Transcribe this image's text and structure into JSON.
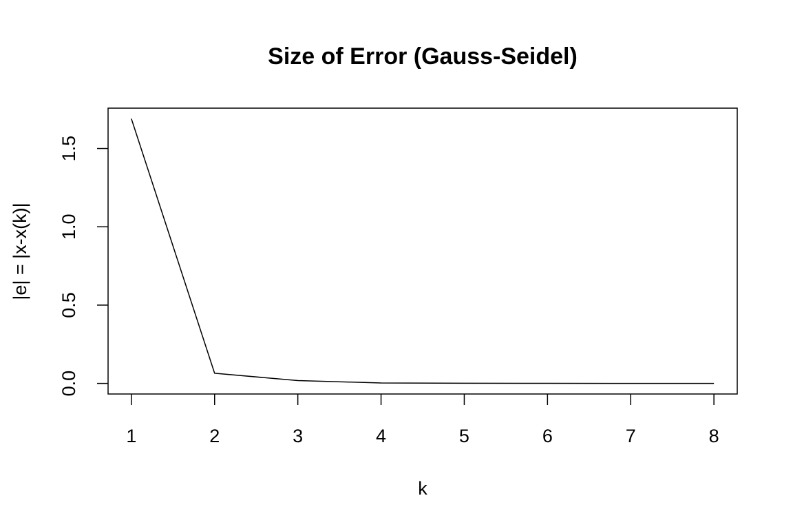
{
  "chart_data": {
    "type": "line",
    "title": "Size of Error (Gauss-Seidel)",
    "xlabel": "k",
    "ylabel": "|e| = |x-x(k)|",
    "x": [
      1,
      2,
      3,
      4,
      5,
      6,
      7,
      8
    ],
    "series": [
      {
        "values": [
          1.69,
          0.065,
          0.018,
          0.003,
          0.001,
          0.0005,
          0.0002,
          0.0001
        ]
      }
    ],
    "xticks": [
      "1",
      "2",
      "3",
      "4",
      "5",
      "6",
      "7",
      "8"
    ],
    "yticks": [
      "0.0",
      "0.5",
      "1.0",
      "1.5"
    ],
    "xlim": [
      0.72,
      8.28
    ],
    "ylim": [
      -0.0676,
      1.7576
    ],
    "grid": false,
    "legend": "none",
    "colors": {
      "line": "#000000",
      "axis": "#000000",
      "background": "#ffffff"
    }
  }
}
